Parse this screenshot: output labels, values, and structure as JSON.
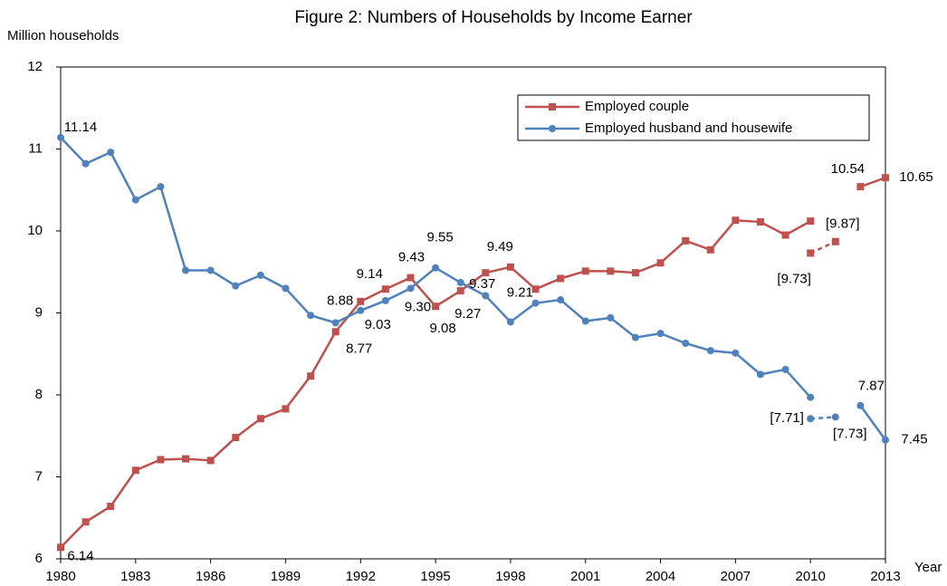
{
  "chart_data": {
    "type": "line",
    "title": "Figure 2: Numbers of Households by Income Earner",
    "y_label": "Million households",
    "x_label": "Year",
    "x": [
      1980,
      1981,
      1982,
      1983,
      1984,
      1985,
      1986,
      1987,
      1988,
      1989,
      1990,
      1991,
      1992,
      1993,
      1994,
      1995,
      1996,
      1997,
      1998,
      1999,
      2000,
      2001,
      2002,
      2003,
      2004,
      2005,
      2006,
      2007,
      2008,
      2009,
      2010,
      2011,
      2012,
      2013
    ],
    "xlim": [
      1980,
      2013
    ],
    "xticks": [
      1980,
      1983,
      1986,
      1989,
      1992,
      1995,
      1998,
      2001,
      2004,
      2007,
      2010,
      2013
    ],
    "ylim": [
      6,
      12
    ],
    "yticks": [
      6,
      7,
      8,
      9,
      10,
      11,
      12
    ],
    "legend": "top-right",
    "series": [
      {
        "name": "Employed couple",
        "color": "#c0504d",
        "marker": "square",
        "values": [
          6.14,
          6.45,
          6.64,
          7.08,
          7.21,
          7.22,
          7.2,
          7.48,
          7.71,
          7.83,
          8.23,
          8.77,
          9.14,
          9.29,
          9.43,
          9.08,
          9.27,
          9.49,
          9.56,
          9.29,
          9.42,
          9.51,
          9.51,
          9.49,
          9.61,
          9.88,
          9.77,
          10.13,
          10.11,
          9.95,
          10.12,
          null,
          10.54,
          10.65
        ],
        "value_labels": [
          "6.14",
          null,
          null,
          null,
          null,
          null,
          null,
          null,
          null,
          null,
          null,
          "8.77",
          "9.14",
          null,
          "9.43",
          "9.08",
          "9.27",
          "9.49",
          null,
          null,
          null,
          null,
          null,
          null,
          null,
          null,
          null,
          null,
          null,
          null,
          null,
          null,
          "10.54",
          "10.65"
        ],
        "alt_values": [
          null,
          null,
          null,
          null,
          null,
          null,
          null,
          null,
          null,
          null,
          null,
          null,
          null,
          null,
          null,
          null,
          null,
          null,
          null,
          null,
          null,
          null,
          null,
          null,
          null,
          null,
          null,
          null,
          null,
          null,
          9.73,
          9.87,
          null,
          null
        ],
        "alt_value_labels": [
          null,
          null,
          null,
          null,
          null,
          null,
          null,
          null,
          null,
          null,
          null,
          null,
          null,
          null,
          null,
          null,
          null,
          null,
          null,
          null,
          null,
          null,
          null,
          null,
          null,
          null,
          null,
          null,
          null,
          null,
          "[9.73]",
          "[9.87]",
          null,
          null
        ]
      },
      {
        "name": "Employed husband and housewife",
        "color": "#4f81bd",
        "marker": "circle",
        "values": [
          11.14,
          10.82,
          10.96,
          10.38,
          10.54,
          9.52,
          9.52,
          9.33,
          9.46,
          9.3,
          8.97,
          8.88,
          9.03,
          9.15,
          9.3,
          9.55,
          9.37,
          9.21,
          8.89,
          9.12,
          9.16,
          8.9,
          8.94,
          8.7,
          8.75,
          8.63,
          8.54,
          8.51,
          8.25,
          8.31,
          7.97,
          null,
          7.87,
          7.45
        ],
        "value_labels": [
          "11.14",
          null,
          null,
          null,
          null,
          null,
          null,
          null,
          null,
          null,
          null,
          "8.88",
          "9.03",
          null,
          "9.30",
          "9.55",
          "9.37",
          "9.21",
          null,
          null,
          null,
          null,
          null,
          null,
          null,
          null,
          null,
          null,
          null,
          null,
          null,
          null,
          "7.87",
          "7.45"
        ],
        "alt_values": [
          null,
          null,
          null,
          null,
          null,
          null,
          null,
          null,
          null,
          null,
          null,
          null,
          null,
          null,
          null,
          null,
          null,
          null,
          null,
          null,
          null,
          null,
          null,
          null,
          null,
          null,
          null,
          null,
          null,
          null,
          7.71,
          7.73,
          null,
          null
        ],
        "alt_value_labels": [
          null,
          null,
          null,
          null,
          null,
          null,
          null,
          null,
          null,
          null,
          null,
          null,
          null,
          null,
          null,
          null,
          null,
          null,
          null,
          null,
          null,
          null,
          null,
          null,
          null,
          null,
          null,
          null,
          null,
          null,
          "[7.71]",
          "[7.73]",
          null,
          null
        ]
      }
    ]
  }
}
